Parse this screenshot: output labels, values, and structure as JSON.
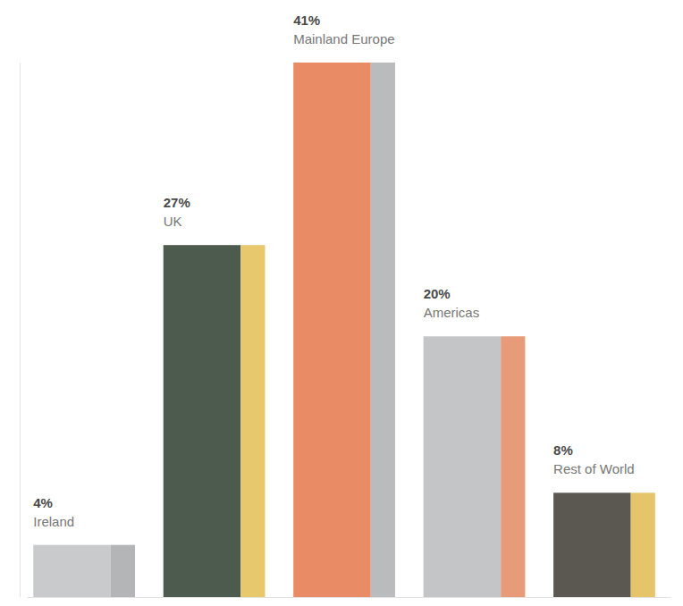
{
  "chart_data": {
    "type": "bar",
    "categories": [
      "Ireland",
      "UK",
      "Mainland Europe",
      "Americas",
      "Rest of World"
    ],
    "values": [
      4,
      27,
      41,
      20,
      8
    ],
    "value_labels": [
      "4%",
      "27%",
      "41%",
      "20%",
      "8%"
    ],
    "data_labels": true,
    "colors": [
      "#c8cacc",
      "#4d5b4e",
      "#e98b64",
      "#c3c5c7",
      "#5b5851"
    ],
    "ylim": [
      0,
      41
    ],
    "tick_labels": false,
    "grid": false
  }
}
